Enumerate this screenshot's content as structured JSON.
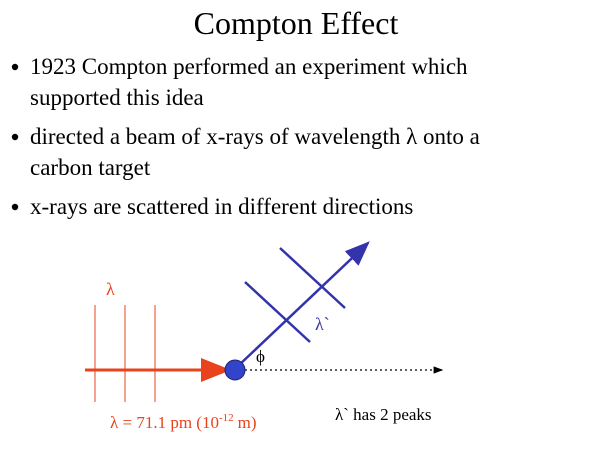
{
  "title": "Compton Effect",
  "bullets": [
    {
      "lines": [
        "1923   Compton performed an experiment which",
        "supported this idea"
      ]
    },
    {
      "lines": [
        "directed a beam of x-rays of wavelength λ onto a",
        "carbon target"
      ]
    },
    {
      "lines": [
        "x-rays are scattered in different directions"
      ]
    }
  ],
  "diagram": {
    "incident_label": "λ",
    "scattered_label": "λ`",
    "angle_label": "ϕ",
    "wavelength_label": {
      "text": "λ = 71.1 pm (10",
      "exponent": "-12",
      "unit": "m)"
    },
    "peaks_label": "λ` has 2 peaks"
  }
}
